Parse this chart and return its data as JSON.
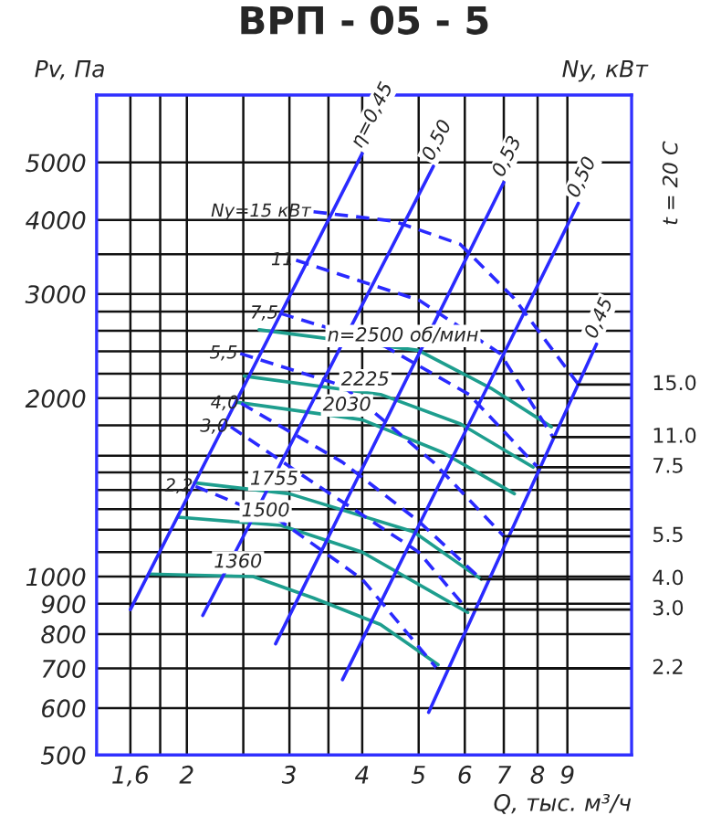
{
  "chart_data": {
    "type": "line",
    "title": "ВРП - 05 - 5",
    "xlabel": "Q, тыс. м³/ч",
    "ylabel": "Pv, Па",
    "y2label": "Ny, кВт",
    "annotations": [
      "t = 20 C",
      {
        "text": "2.2",
        "x": 5.37,
        "y": 700
      },
      {
        "text": "3.0",
        "x": 6.06,
        "y": 880
      },
      {
        "text": "4.0",
        "x": 6.4,
        "y": 990
      },
      {
        "text": "5.5",
        "x": 7.0,
        "y": 1170
      },
      {
        "text": "7.5",
        "x": 8.0,
        "y": 1530
      },
      {
        "text": "11.0",
        "x": 8.5,
        "y": 1720
      },
      {
        "text": "15.0",
        "x": 9.4,
        "y": 2110
      }
    ],
    "log": "xy",
    "grid": true,
    "legend": false,
    "line_style": "solid",
    "xlim": [
      1.4,
      11.6
    ],
    "ylim": [
      500,
      6500
    ],
    "xticks": [
      {
        "value": 1.6,
        "label": "1,6"
      },
      {
        "value": 1.8,
        "label": null
      },
      2,
      {
        "value": 2.5,
        "label": null
      },
      3,
      {
        "value": 3.5,
        "label": null
      },
      4,
      5,
      6,
      7,
      8,
      9
    ],
    "yticks": [
      500,
      600,
      700,
      800,
      900,
      1000,
      {
        "value": 1100,
        "label": null
      },
      {
        "value": 1200,
        "label": null
      },
      {
        "value": 1300,
        "label": null
      },
      {
        "value": 1400,
        "label": null
      },
      {
        "value": 1500,
        "label": null
      },
      {
        "value": 1600,
        "label": null
      },
      {
        "value": 1800,
        "label": null
      },
      2000,
      {
        "value": 2200,
        "label": null
      },
      {
        "value": 2400,
        "label": null
      },
      {
        "value": 2600,
        "label": null
      },
      {
        "value": 2800,
        "label": null
      },
      3000,
      {
        "value": 3500,
        "label": null
      },
      4000,
      5000
    ],
    "series": [
      {
        "name": "n=2500 об/мин",
        "color": "#1e9e8e",
        "x": [
          2.66,
          4.99,
          6.65,
          8.45
        ],
        "values": [
          2610,
          2410,
          2080,
          1790
        ]
      },
      {
        "name": "2225",
        "color": "#1e9e8e",
        "x": [
          2.51,
          4.3,
          5.9,
          7.86
        ],
        "values": [
          2180,
          2030,
          1810,
          1530
        ]
      },
      {
        "name": "2030",
        "color": "#1e9e8e",
        "x": [
          2.43,
          4.0,
          5.5,
          7.3
        ],
        "values": [
          1970,
          1840,
          1620,
          1380
        ]
      },
      {
        "name": "1755",
        "color": "#1e9e8e",
        "x": [
          2.06,
          3.0,
          4.9,
          6.4
        ],
        "values": [
          1440,
          1380,
          1190,
          990
        ]
      },
      {
        "name": "1500",
        "color": "#1e9e8e",
        "x": [
          1.93,
          2.9,
          4.0,
          6.07
        ],
        "values": [
          1260,
          1220,
          1100,
          870
        ]
      },
      {
        "name": "1360",
        "color": "#1e9e8e",
        "x": [
          1.72,
          2.6,
          3.3,
          4.3,
          5.4
        ],
        "values": [
          1010,
          1000,
          920,
          830,
          710
        ]
      },
      {
        "name": "Ny=15 кВт",
        "color": "#2a2aff",
        "line_style": "dashed",
        "x": [
          3.3,
          4.54,
          5.89,
          7.29,
          9.4
        ],
        "values": [
          4130,
          3980,
          3640,
          2950,
          2110
        ]
      },
      {
        "name": "11",
        "color": "#2a2aff",
        "line_style": "dashed",
        "x": [
          3.08,
          5.0,
          6.9,
          8.5
        ],
        "values": [
          3420,
          2930,
          2380,
          1720
        ]
      },
      {
        "name": "7,5",
        "color": "#2a2aff",
        "line_style": "dashed",
        "x": [
          2.9,
          4.3,
          6.1,
          8.0
        ],
        "values": [
          2780,
          2470,
          2030,
          1530
        ]
      },
      {
        "name": "5,5",
        "color": "#2a2aff",
        "line_style": "dashed",
        "x": [
          2.47,
          3.7,
          5.3,
          7.0
        ],
        "values": [
          2380,
          2100,
          1560,
          1170
        ]
      },
      {
        "name": "4,0",
        "color": "#2a2aff",
        "line_style": "dashed",
        "x": [
          2.48,
          3.7,
          5.0,
          6.4
        ],
        "values": [
          1960,
          1560,
          1240,
          990
        ]
      },
      {
        "name": "3,0",
        "color": "#2a2aff",
        "line_style": "dashed",
        "x": [
          2.38,
          3.3,
          5.0,
          6.06
        ],
        "values": [
          1790,
          1440,
          1100,
          880
        ]
      },
      {
        "name": "2,2",
        "color": "#2a2aff",
        "line_style": "dashed",
        "x": [
          2.07,
          2.9,
          4.0,
          5.37
        ],
        "values": [
          1420,
          1240,
          990,
          700
        ]
      },
      {
        "name": "η=0,45",
        "color": "#2a2aff",
        "x": [
          1.6,
          4.0
        ],
        "values": [
          880,
          5180
        ]
      },
      {
        "name": "0,50",
        "color": "#2a2aff",
        "x": [
          2.13,
          5.3
        ],
        "values": [
          860,
          4930
        ]
      },
      {
        "name": "0,53",
        "color": "#2a2aff",
        "x": [
          2.84,
          7.0
        ],
        "values": [
          770,
          4630
        ]
      },
      {
        "name": "0,50",
        "color": "#2a2aff",
        "x": [
          3.7,
          9.4
        ],
        "values": [
          670,
          4270
        ]
      },
      {
        "name": "0,45",
        "color": "#2a2aff",
        "x": [
          5.2,
          10.1
        ],
        "values": [
          590,
          2470
        ]
      }
    ]
  }
}
